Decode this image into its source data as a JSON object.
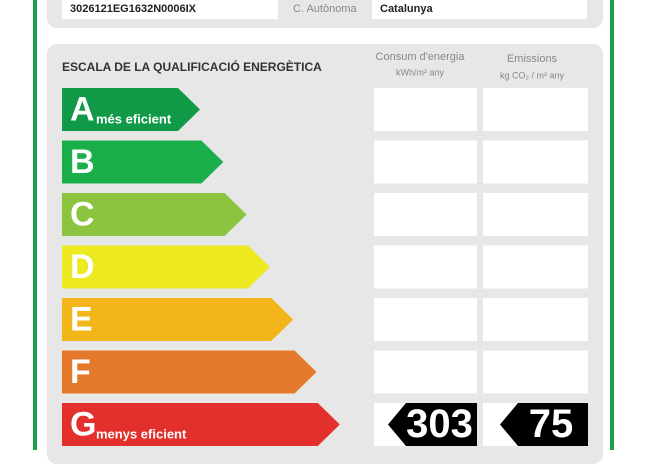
{
  "header": {
    "reference": "3026121EG1632N0006IX",
    "region_label": "C. Autònoma",
    "region": "Catalunya"
  },
  "scale": {
    "title": "ESCALA DE LA QUALIFICACIÓ ENERGÈTICA",
    "columns": [
      {
        "title": "Consum d'energia",
        "unit": "kWh/m² any"
      },
      {
        "title": "Emissions",
        "unit": "kg CO₂ / m² any"
      }
    ],
    "ratings": [
      {
        "letter": "A",
        "label": "més eficient",
        "color": "#109a48"
      },
      {
        "letter": "B",
        "color": "#1aaf4b"
      },
      {
        "letter": "C",
        "color": "#8cc43f"
      },
      {
        "letter": "D",
        "color": "#eeea22"
      },
      {
        "letter": "E",
        "color": "#f2b51a"
      },
      {
        "letter": "F",
        "color": "#e5792b"
      },
      {
        "letter": "G",
        "label": "menys eficient",
        "color": "#e3302d"
      }
    ],
    "current": {
      "consumption": 303,
      "emissions": 75
    }
  }
}
